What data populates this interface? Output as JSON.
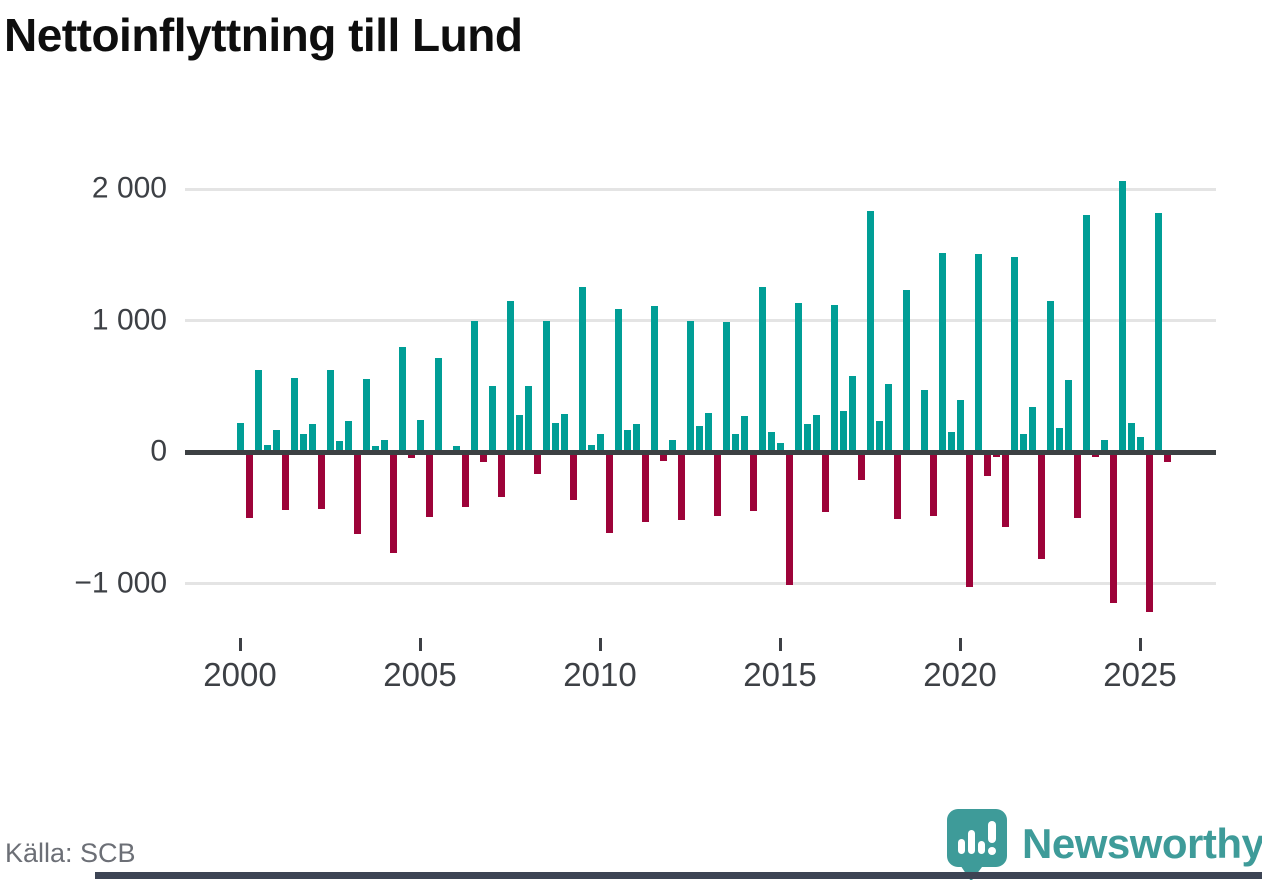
{
  "header": {
    "title": "Nettoinflyttning till Lund"
  },
  "footer": {
    "source": "Källa: SCB",
    "logo_text": "Newsworthy",
    "logo_color": "#3e9b99"
  },
  "chart_data": {
    "type": "bar",
    "title": "Nettoinflyttning till Lund",
    "x_unit": "quarter",
    "start_year": 2000,
    "values_per_year": 4,
    "grid": true,
    "positive_color": "#009e96",
    "negative_color": "#9d0339",
    "zero_line_color": "#3c4043",
    "ylim": [
      -1500,
      2300
    ],
    "yticks": [
      {
        "label": "2 000",
        "value": 2000
      },
      {
        "label": "1 000",
        "value": 1000
      },
      {
        "label": "0",
        "value": 0
      },
      {
        "label": "−1 000",
        "value": -1000
      }
    ],
    "gridline_values": [
      2000,
      1000,
      -1000
    ],
    "xticks": [
      {
        "label": "2000",
        "slot": 0
      },
      {
        "label": "2005",
        "slot": 20
      },
      {
        "label": "2010",
        "slot": 40
      },
      {
        "label": "2015",
        "slot": 60
      },
      {
        "label": "2020",
        "slot": 80
      },
      {
        "label": "2025",
        "slot": 100
      }
    ],
    "series_name": "Nettoinflyttning per kvartal",
    "values": [
      220,
      -500,
      620,
      55,
      165,
      -440,
      565,
      140,
      215,
      -435,
      620,
      80,
      235,
      -620,
      555,
      45,
      90,
      -770,
      800,
      -45,
      245,
      -495,
      715,
      0,
      45,
      -415,
      1000,
      -75,
      500,
      -340,
      1145,
      280,
      500,
      -165,
      1000,
      220,
      290,
      -365,
      1255,
      50,
      140,
      -615,
      1090,
      170,
      210,
      -535,
      1110,
      -65,
      95,
      -520,
      1000,
      200,
      300,
      -485,
      990,
      140,
      270,
      -445,
      1255,
      155,
      70,
      -1010,
      1135,
      210,
      280,
      -460,
      1115,
      310,
      575,
      -215,
      1830,
      235,
      520,
      -510,
      1235,
      0,
      470,
      -490,
      1510,
      155,
      395,
      -1030,
      1505,
      -180,
      -40,
      -570,
      1480,
      135,
      340,
      -810,
      1150,
      180,
      545,
      -505,
      1800,
      -35,
      90,
      -1145,
      2060,
      220,
      115,
      -1215,
      1820,
      -75
    ]
  }
}
